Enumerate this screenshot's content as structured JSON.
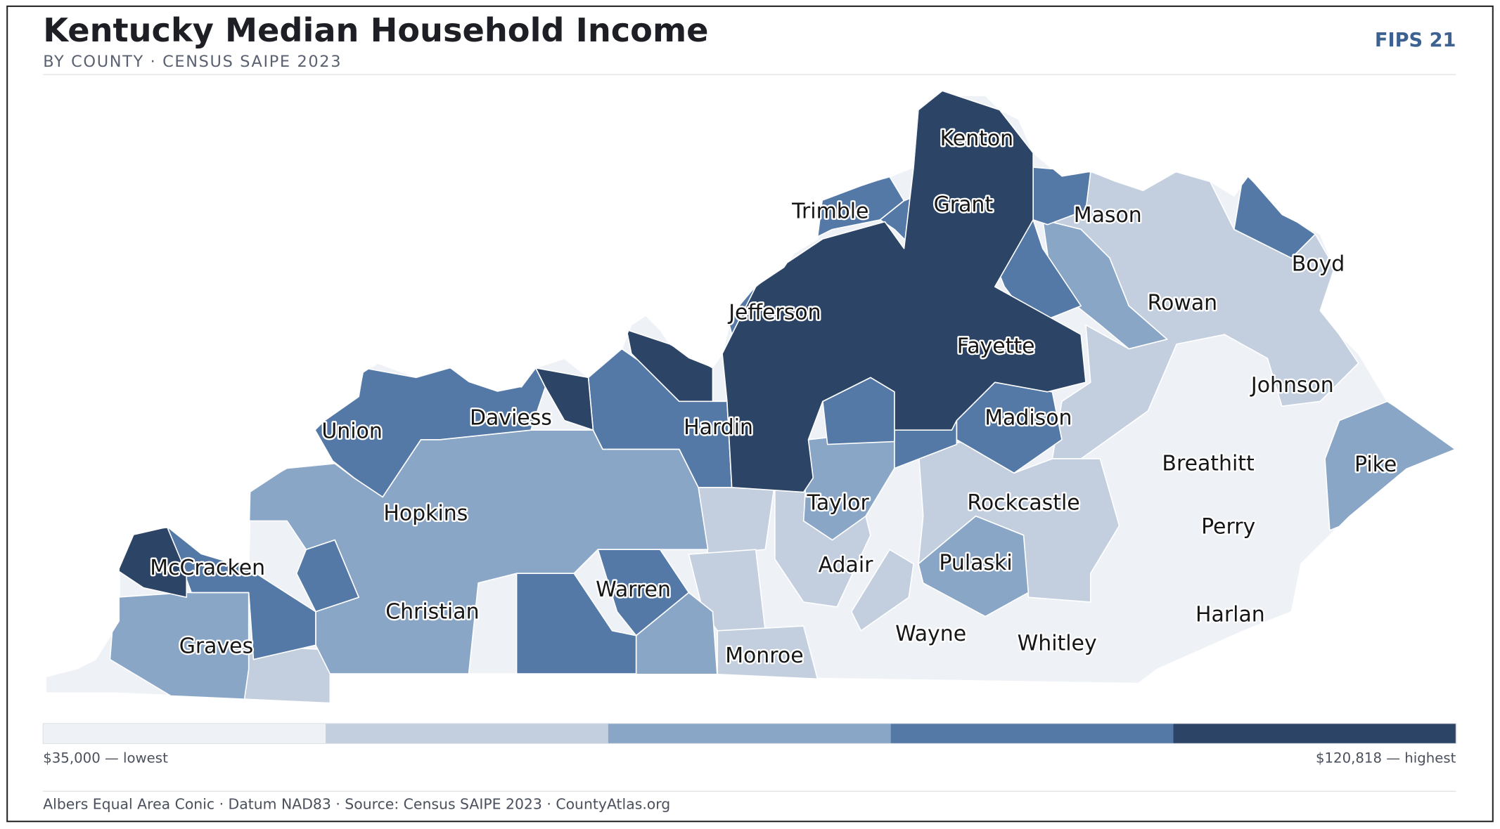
{
  "header": {
    "title": "Kentucky Median Household Income",
    "subtitle": "BY COUNTY · CENSUS SAIPE 2023",
    "badge": "FIPS 21"
  },
  "map": {
    "labels": [
      "Kenton",
      "Grant",
      "Trimble",
      "Mason",
      "Boyd",
      "Rowan",
      "Jefferson",
      "Fayette",
      "Johnson",
      "Madison",
      "Daviess",
      "Hardin",
      "Union",
      "Breathitt",
      "Pike",
      "Rockcastle",
      "Taylor",
      "Hopkins",
      "Perry",
      "Adair",
      "Pulaski",
      "McCracken",
      "Warren",
      "Christian",
      "Harlan",
      "Wayne",
      "Whitley",
      "Graves",
      "Monroe"
    ]
  },
  "legend": {
    "colors": [
      "#eef1f6",
      "#c3cfdf",
      "#8aa6c6",
      "#5479a6",
      "#2c4466"
    ],
    "low": "$35,000 — lowest",
    "high": "$120,818 — highest"
  },
  "footer": "Albers Equal Area Conic · Datum NAD83 · Source: Census SAIPE 2023 · CountyAtlas.org"
}
